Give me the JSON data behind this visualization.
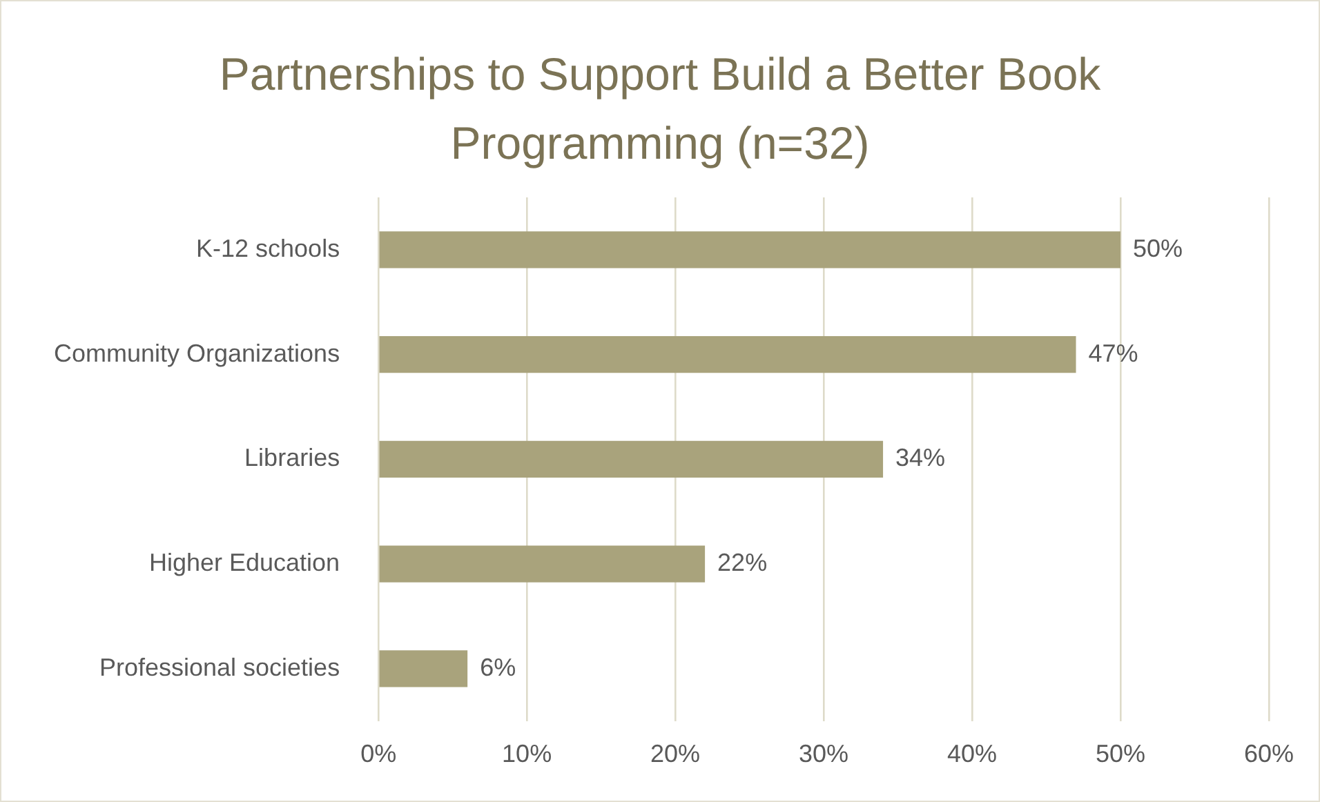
{
  "chart_data": {
    "type": "bar",
    "orientation": "horizontal",
    "title": "Partnerships to Support Build a Better Book Programming (n=32)",
    "categories": [
      "K-12 schools",
      "Community Organizations",
      "Libraries",
      "Higher Education",
      "Professional societies"
    ],
    "values": [
      50,
      47,
      34,
      22,
      6
    ],
    "color": "#a9a37c",
    "value_labels": [
      "50%",
      "47%",
      "34%",
      "22%",
      "6%"
    ],
    "xlim": [
      0,
      60
    ],
    "xticks": [
      {
        "value": 0,
        "label": "0%"
      },
      {
        "value": 10,
        "label": "10%"
      },
      {
        "value": 20,
        "label": "20%"
      },
      {
        "value": 30,
        "label": "30%"
      },
      {
        "value": 40,
        "label": "40%"
      },
      {
        "value": 50,
        "label": "50%"
      },
      {
        "value": 60,
        "label": "60%"
      }
    ],
    "grid": "x",
    "legend": false
  }
}
